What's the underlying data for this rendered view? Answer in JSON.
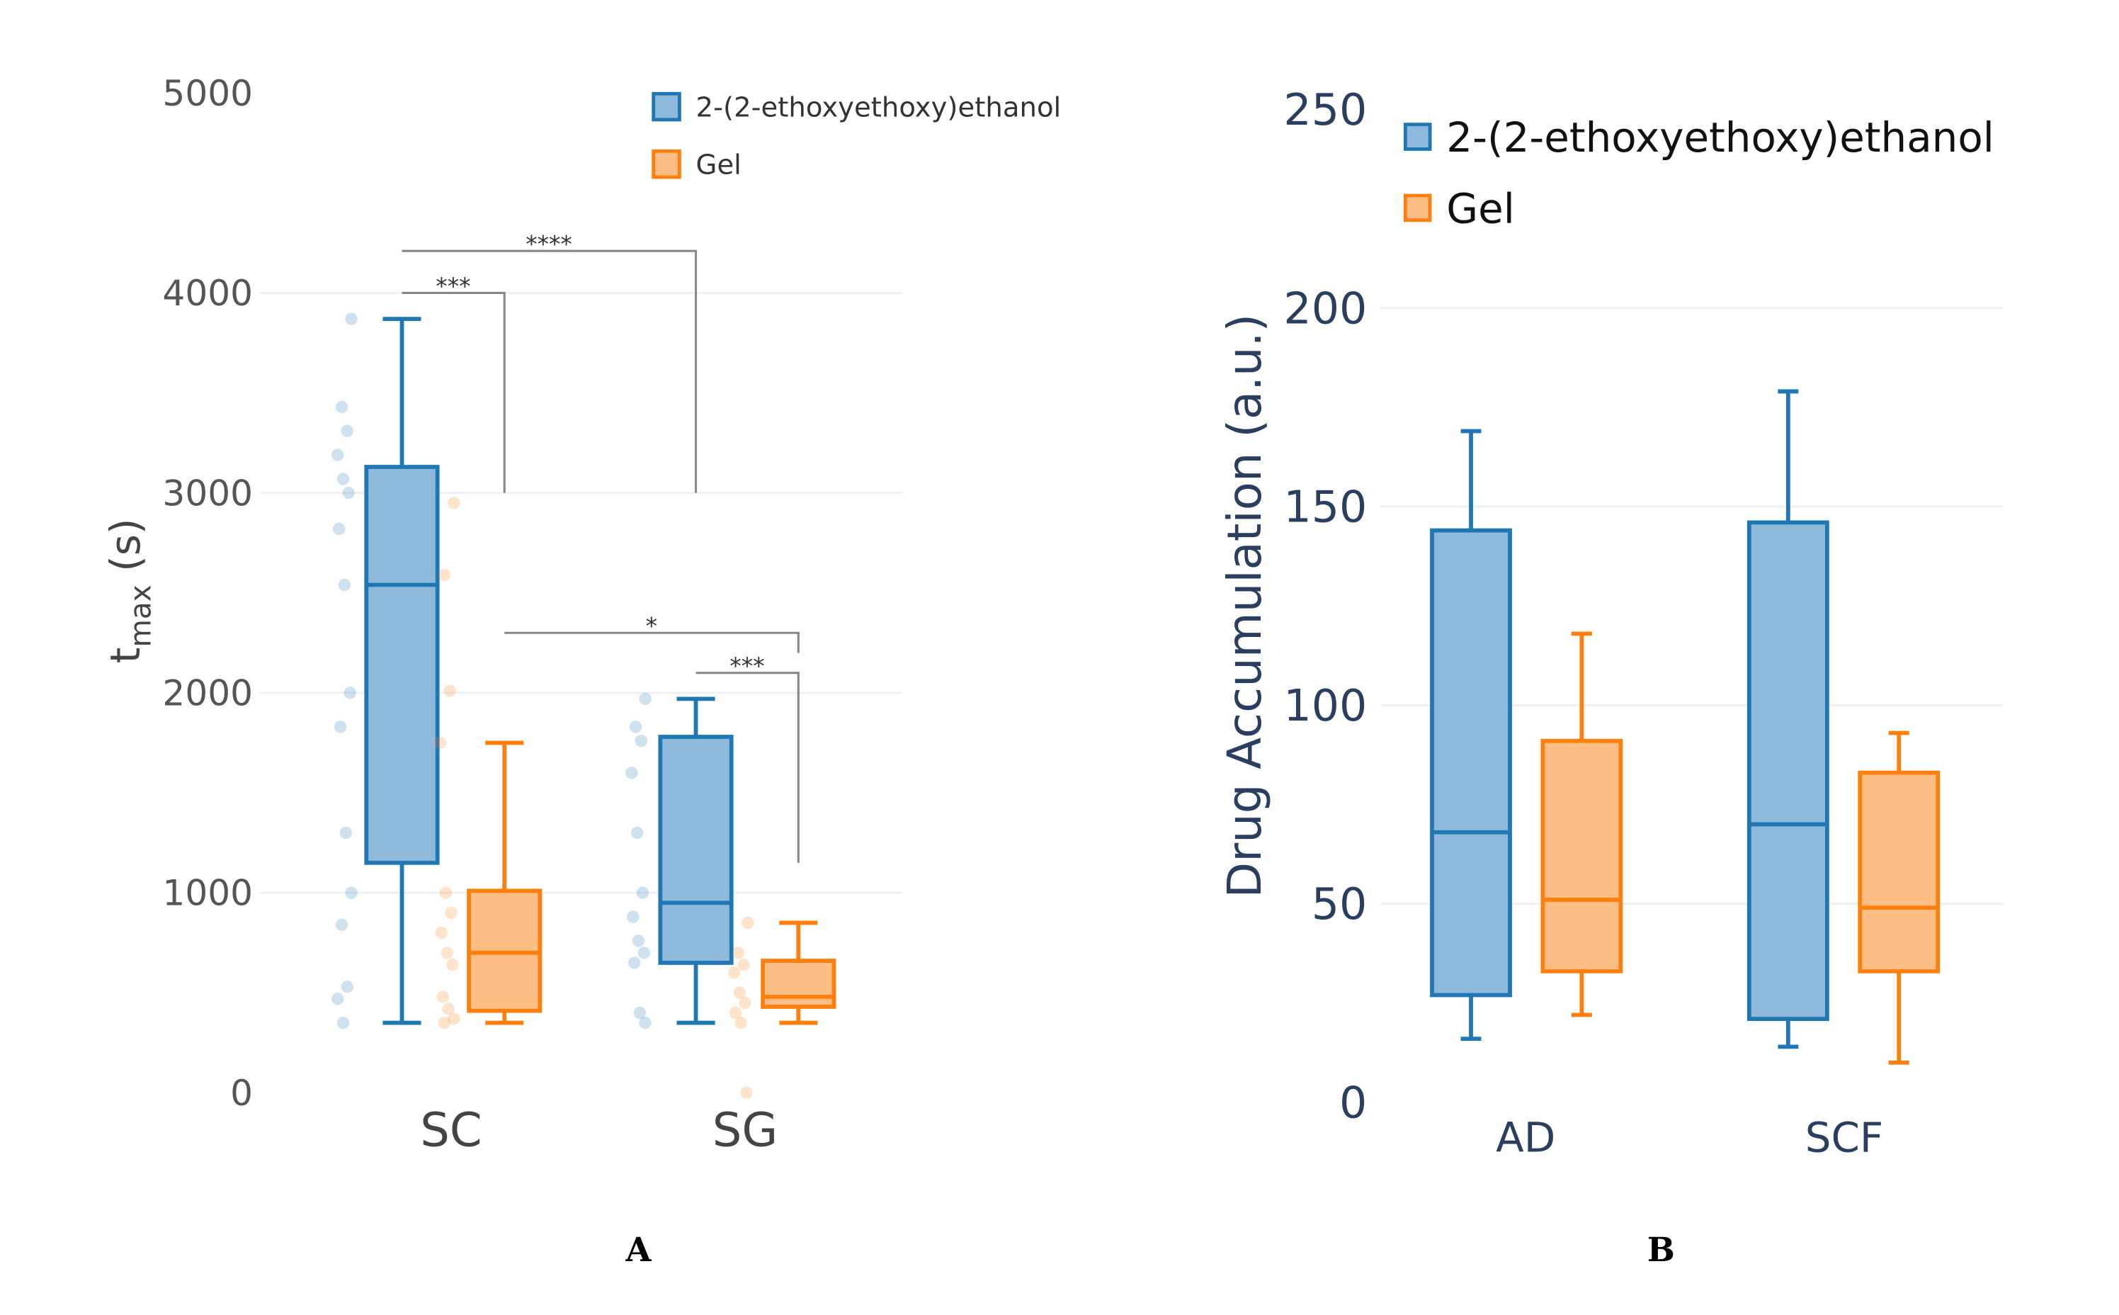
{
  "chart_data": [
    {
      "type": "box",
      "panel_label": "A",
      "ylabel": "t",
      "ylabel_sub": "max",
      "ylabel_unit": " (s)",
      "ylim": [
        0,
        5000
      ],
      "yticks": [
        0,
        1000,
        2000,
        3000,
        4000,
        5000
      ],
      "grid": true,
      "categories": [
        "SC",
        "SG"
      ],
      "legend_placement": "top-right",
      "tick_color": "#555555",
      "series": [
        {
          "name": "2-(2-ethoxyethoxy)ethanol",
          "color": "#1f77b4",
          "fill": "#8fb9da",
          "boxes": [
            {
              "min": 350,
              "q1": 1150,
              "median": 2540,
              "q3": 3130,
              "max": 3870,
              "points": [
                3870,
                3430,
                3310,
                3190,
                3070,
                3000,
                2820,
                2540,
                2000,
                1830,
                1300,
                1000,
                840,
                530,
                470,
                350
              ]
            },
            {
              "min": 350,
              "q1": 650,
              "median": 950,
              "q3": 1780,
              "max": 1970,
              "points": [
                1970,
                1830,
                1760,
                1600,
                1300,
                1000,
                880,
                760,
                700,
                650,
                400,
                350
              ]
            }
          ]
        },
        {
          "name": "Gel",
          "color": "#ff7f0e",
          "fill": "#fdbe85",
          "boxes": [
            {
              "min": 350,
              "q1": 410,
              "median": 700,
              "q3": 1010,
              "max": 1750,
              "points": [
                2950,
                2590,
                2010,
                1750,
                1000,
                900,
                800,
                700,
                640,
                480,
                420,
                370,
                350
              ]
            },
            {
              "min": 350,
              "q1": 430,
              "median": 480,
              "q3": 660,
              "max": 850,
              "points": [
                850,
                700,
                640,
                600,
                500,
                450,
                400,
                350,
                0
              ]
            }
          ]
        }
      ],
      "annotations": [
        {
          "label": "****",
          "from": "SC/2-(2-ethoxyethoxy)ethanol",
          "to": "SG/2-(2-ethoxyethoxy)ethanol",
          "y": 4210,
          "leg_to": 3000
        },
        {
          "label": "***",
          "from": "SC/2-(2-ethoxyethoxy)ethanol",
          "to": "SC/Gel",
          "y": 4000,
          "leg_to": 3000
        },
        {
          "label": "*",
          "from": "SC/Gel",
          "to": "SG/Gel",
          "y": 2300,
          "leg_to": 2200
        },
        {
          "label": "***",
          "from": "SG/2-(2-ethoxyethoxy)ethanol",
          "to": "SG/Gel",
          "y": 2100,
          "leg_to": 1150
        }
      ]
    },
    {
      "type": "box",
      "panel_label": "B",
      "ylabel": "Drug Accumulation (a.u.)",
      "ylim": [
        0,
        250
      ],
      "yticks": [
        0,
        50,
        100,
        150,
        200,
        250
      ],
      "grid": true,
      "categories": [
        "AD",
        "SCF"
      ],
      "legend_placement": "top-right",
      "tick_color": "#2a3f5f",
      "series": [
        {
          "name": "2-(2-ethoxyethoxy)ethanol",
          "color": "#1f77b4",
          "fill": "#8fb9da",
          "boxes": [
            {
              "min": 16,
              "q1": 27,
              "median": 68,
              "q3": 144,
              "max": 169
            },
            {
              "min": 14,
              "q1": 21,
              "median": 70,
              "q3": 146,
              "max": 179
            }
          ]
        },
        {
          "name": "Gel",
          "color": "#ff7f0e",
          "fill": "#fdbe85",
          "boxes": [
            {
              "min": 22,
              "q1": 33,
              "median": 51,
              "q3": 91,
              "max": 118
            },
            {
              "min": 10,
              "q1": 33,
              "median": 49,
              "q3": 83,
              "max": 93
            }
          ]
        }
      ]
    }
  ]
}
